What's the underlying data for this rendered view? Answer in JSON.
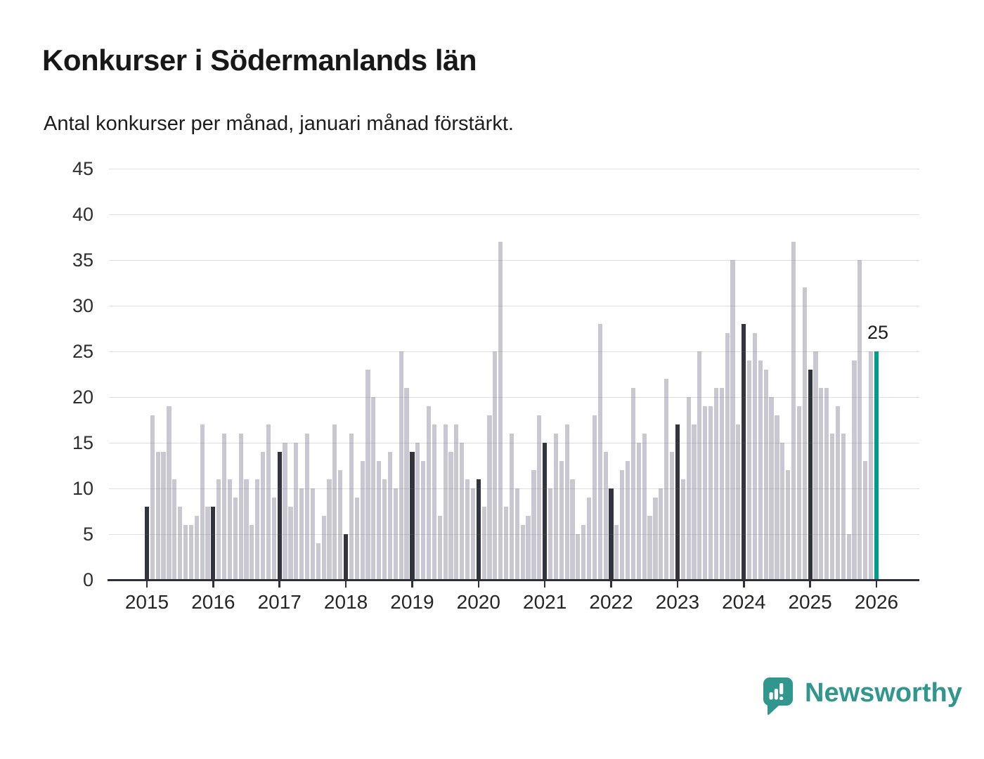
{
  "title": "Konkurser i Södermanlands län",
  "subtitle": "Antal konkurser per månad, januari månad förstärkt.",
  "annotation": {
    "text": "25",
    "target": "2026-01"
  },
  "branding": {
    "name": "Newsworthy",
    "icon": "bar-chart-speech-bubble-icon"
  },
  "colors": {
    "bar_default": "#c9c8d2",
    "bar_january": "#32353f",
    "bar_highlight": "#009b8f",
    "grid": "#d9d9d9",
    "axis": "#2d303a",
    "text": "#1a1a1a",
    "brand_teal": "#31968d"
  },
  "chart_data": {
    "type": "bar",
    "title": "Konkurser i Södermanlands län",
    "subtitle": "Antal konkurser per månad, januari månad förstärkt.",
    "xlabel": "",
    "ylabel": "",
    "ylim": [
      0,
      45
    ],
    "yticks": [
      0,
      5,
      10,
      15,
      20,
      25,
      30,
      35,
      40,
      45
    ],
    "grid": "horizontal",
    "legend": "none",
    "highlight_note": "January bars dark; final bar Jan 2026 teal with data label 25",
    "x_tick_labels": [
      "2015",
      "2016",
      "2017",
      "2018",
      "2019",
      "2020",
      "2021",
      "2022",
      "2023",
      "2024",
      "2025",
      "2026"
    ],
    "series": [
      {
        "year": 2015,
        "values": [
          8,
          18,
          14,
          14,
          19,
          11,
          8,
          6,
          6,
          7,
          17,
          8
        ]
      },
      {
        "year": 2016,
        "values": [
          8,
          11,
          16,
          11,
          9,
          16,
          11,
          6,
          11,
          14,
          17,
          9
        ]
      },
      {
        "year": 2017,
        "values": [
          14,
          15,
          8,
          15,
          10,
          16,
          10,
          4,
          7,
          11,
          17,
          12
        ]
      },
      {
        "year": 2018,
        "values": [
          5,
          16,
          9,
          13,
          23,
          20,
          13,
          11,
          14,
          10,
          25,
          21
        ]
      },
      {
        "year": 2019,
        "values": [
          14,
          15,
          13,
          19,
          17,
          7,
          17,
          14,
          17,
          15,
          11,
          10
        ]
      },
      {
        "year": 2020,
        "values": [
          11,
          8,
          18,
          25,
          37,
          8,
          16,
          10,
          6,
          7,
          12,
          18
        ]
      },
      {
        "year": 2021,
        "values": [
          15,
          10,
          16,
          13,
          17,
          11,
          5,
          6,
          9,
          18,
          28,
          14
        ]
      },
      {
        "year": 2022,
        "values": [
          10,
          6,
          12,
          13,
          21,
          15,
          16,
          7,
          9,
          10,
          22,
          14
        ]
      },
      {
        "year": 2023,
        "values": [
          17,
          11,
          20,
          17,
          25,
          19,
          19,
          21,
          21,
          27,
          35,
          17
        ]
      },
      {
        "year": 2024,
        "values": [
          28,
          24,
          27,
          24,
          23,
          20,
          18,
          15,
          12,
          37,
          19,
          32
        ]
      },
      {
        "year": 2025,
        "values": [
          23,
          25,
          21,
          21,
          16,
          19,
          16,
          5,
          24,
          35,
          13,
          25
        ]
      },
      {
        "year": 2026,
        "values": [
          25
        ]
      }
    ]
  }
}
